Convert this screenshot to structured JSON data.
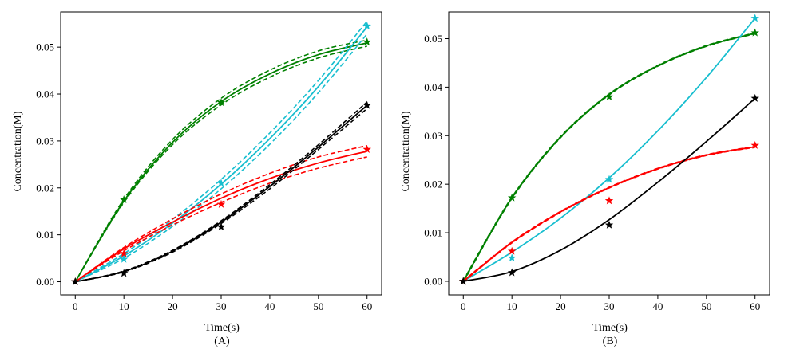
{
  "chart_data": [
    {
      "type": "line",
      "panel_label": "(A)",
      "xlabel": "Time(s)",
      "ylabel": "Concentration(M)",
      "xlim": [
        -3,
        63
      ],
      "ylim": [
        -0.0028,
        0.0575
      ],
      "xticks": [
        0,
        10,
        20,
        30,
        40,
        50,
        60
      ],
      "yticks": [
        0.0,
        0.01,
        0.02,
        0.03,
        0.04,
        0.05
      ],
      "ytick_labels": [
        "0.00",
        "0.01",
        "0.02",
        "0.03",
        "0.04",
        "0.05"
      ],
      "grid": false,
      "confidence_bands": true,
      "series": [
        {
          "color": "#008000",
          "observed": {
            "x": [
              0,
              10,
              30,
              60
            ],
            "y": [
              0.0,
              0.0175,
              0.0382,
              0.0511
            ]
          },
          "fit": {
            "x": [
              0,
              10,
              20,
              30,
              40,
              50,
              60
            ],
            "y": [
              0.0,
              0.0172,
              0.0297,
              0.0384,
              0.0443,
              0.0484,
              0.0509
            ]
          },
          "band_upper": [
            0.0,
            0.0176,
            0.0303,
            0.0391,
            0.0451,
            0.0492,
            0.0515
          ],
          "band_lower": [
            0.0,
            0.0169,
            0.0292,
            0.0377,
            0.0436,
            0.0477,
            0.0502
          ]
        },
        {
          "color": "#17becf",
          "observed": {
            "x": [
              0,
              10,
              30,
              60
            ],
            "y": [
              0.0,
              0.0048,
              0.021,
              0.0545
            ]
          },
          "fit": {
            "x": [
              0,
              10,
              20,
              30,
              40,
              50,
              60
            ],
            "y": [
              0.0,
              0.0055,
              0.0125,
              0.0208,
              0.0305,
              0.0416,
              0.0543
            ]
          },
          "band_upper": [
            0.0,
            0.006,
            0.0133,
            0.0218,
            0.0317,
            0.0429,
            0.0555
          ],
          "band_lower": [
            0.0,
            0.005,
            0.0118,
            0.0198,
            0.0293,
            0.0403,
            0.0528
          ]
        },
        {
          "color": "#ff0000",
          "observed": {
            "x": [
              0,
              10,
              30,
              60
            ],
            "y": [
              0.0,
              0.006,
              0.0165,
              0.0282
            ]
          },
          "fit": {
            "x": [
              0,
              10,
              20,
              30,
              40,
              50,
              60
            ],
            "y": [
              0.0,
              0.007,
              0.0127,
              0.0178,
              0.022,
              0.0253,
              0.0278
            ]
          },
          "band_upper": [
            0.0,
            0.0073,
            0.0134,
            0.0187,
            0.0231,
            0.0266,
            0.029
          ],
          "band_lower": [
            0.0,
            0.0066,
            0.0121,
            0.0169,
            0.021,
            0.0242,
            0.0266
          ]
        },
        {
          "color": "#000000",
          "observed": {
            "x": [
              0,
              10,
              30,
              60
            ],
            "y": [
              0.0,
              0.0018,
              0.0117,
              0.0376
            ]
          },
          "fit": {
            "x": [
              0,
              10,
              20,
              30,
              40,
              50,
              60
            ],
            "y": [
              0.0,
              0.0022,
              0.0065,
              0.0127,
              0.0203,
              0.0287,
              0.0376
            ]
          },
          "band_upper": [
            0.0,
            0.0023,
            0.0067,
            0.013,
            0.0207,
            0.0292,
            0.0383
          ],
          "band_lower": [
            0.0,
            0.0021,
            0.0063,
            0.0124,
            0.0198,
            0.0282,
            0.0369
          ]
        }
      ]
    },
    {
      "type": "line",
      "panel_label": "(B)",
      "xlabel": "Time(s)",
      "ylabel": "Concentration(M)",
      "xlim": [
        -3,
        63
      ],
      "ylim": [
        -0.0028,
        0.0555
      ],
      "xticks": [
        0,
        10,
        20,
        30,
        40,
        50,
        60
      ],
      "yticks": [
        0.0,
        0.01,
        0.02,
        0.03,
        0.04,
        0.05
      ],
      "ytick_labels": [
        "0.00",
        "0.01",
        "0.02",
        "0.03",
        "0.04",
        "0.05"
      ],
      "grid": false,
      "confidence_bands": false,
      "series": [
        {
          "color": "#008000",
          "dashed_overlay": true,
          "observed": {
            "x": [
              0,
              10,
              30,
              60
            ],
            "y": [
              0.0,
              0.0172,
              0.038,
              0.0512
            ]
          },
          "fit": {
            "x": [
              0,
              10,
              20,
              30,
              40,
              50,
              60
            ],
            "y": [
              0.0,
              0.0172,
              0.0297,
              0.0385,
              0.0444,
              0.0485,
              0.0511
            ]
          }
        },
        {
          "color": "#17becf",
          "dashed_overlay": false,
          "observed": {
            "x": [
              0,
              10,
              30,
              60
            ],
            "y": [
              0.0,
              0.0048,
              0.021,
              0.0542
            ]
          },
          "fit": {
            "x": [
              0,
              10,
              20,
              30,
              40,
              50,
              60
            ],
            "y": [
              0.0,
              0.006,
              0.013,
              0.0213,
              0.031,
              0.042,
              0.0542
            ]
          }
        },
        {
          "color": "#ff0000",
          "dashed_overlay": true,
          "observed": {
            "x": [
              0,
              10,
              30,
              60
            ],
            "y": [
              0.0,
              0.0062,
              0.0166,
              0.028
            ]
          },
          "fit": {
            "x": [
              0,
              10,
              20,
              30,
              40,
              50,
              60
            ],
            "y": [
              0.0,
              0.008,
              0.0143,
              0.0193,
              0.0232,
              0.026,
              0.0277
            ]
          }
        },
        {
          "color": "#000000",
          "dashed_overlay": false,
          "observed": {
            "x": [
              0,
              10,
              30,
              60
            ],
            "y": [
              0.0,
              0.0018,
              0.0116,
              0.0377
            ]
          },
          "fit": {
            "x": [
              0,
              10,
              20,
              30,
              40,
              50,
              60
            ],
            "y": [
              0.0,
              0.002,
              0.0064,
              0.0127,
              0.0204,
              0.0288,
              0.0377
            ]
          }
        }
      ]
    }
  ]
}
